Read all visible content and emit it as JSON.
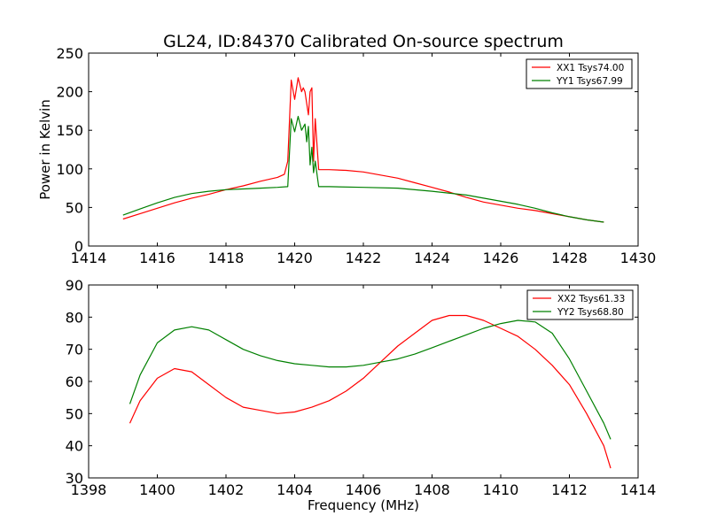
{
  "figure": {
    "title": "GL24, ID:84370 Calibrated On-source spectrum",
    "xlabel": "Frequency (MHz)",
    "ylabel": "Power in Kelvin"
  },
  "colors": {
    "red": "#ff0000",
    "green": "#008000",
    "axis": "#000000"
  },
  "chart_data": [
    {
      "type": "line",
      "title": "GL24, ID:84370 Calibrated On-source spectrum",
      "xlabel": "",
      "ylabel": "Power in Kelvin",
      "xlim": [
        1414,
        1430
      ],
      "ylim": [
        0,
        250
      ],
      "xticks": [
        "1414",
        "1416",
        "1418",
        "1420",
        "1422",
        "1424",
        "1426",
        "1428",
        "1430"
      ],
      "yticks": [
        "0",
        "50",
        "100",
        "150",
        "200",
        "250"
      ],
      "grid": false,
      "legend": "top-right",
      "series": [
        {
          "name": "XX1 Tsys74.00",
          "color": "#ff0000",
          "x": [
            1415.0,
            1415.5,
            1416.0,
            1416.5,
            1417.0,
            1417.5,
            1418.0,
            1418.5,
            1419.0,
            1419.5,
            1419.7,
            1419.8,
            1419.9,
            1420.0,
            1420.1,
            1420.2,
            1420.25,
            1420.3,
            1420.4,
            1420.45,
            1420.5,
            1420.55,
            1420.6,
            1420.7,
            1421.0,
            1421.5,
            1422.0,
            1422.5,
            1423.0,
            1423.5,
            1424.0,
            1424.5,
            1425.0,
            1425.5,
            1426.0,
            1426.5,
            1427.0,
            1427.5,
            1428.0,
            1428.5,
            1429.0
          ],
          "values": [
            35,
            42,
            49,
            56,
            62,
            67,
            73,
            78,
            84,
            89,
            93,
            110,
            215,
            190,
            218,
            200,
            205,
            200,
            170,
            200,
            205,
            110,
            165,
            99,
            99,
            98,
            96,
            92,
            88,
            82,
            76,
            70,
            63,
            57,
            53,
            49,
            46,
            42,
            38,
            34,
            31
          ]
        },
        {
          "name": "YY1 Tsys67.99",
          "color": "#008000",
          "x": [
            1415.0,
            1415.5,
            1416.0,
            1416.5,
            1417.0,
            1417.5,
            1418.0,
            1418.5,
            1419.0,
            1419.5,
            1419.8,
            1419.9,
            1420.0,
            1420.1,
            1420.2,
            1420.3,
            1420.35,
            1420.4,
            1420.45,
            1420.5,
            1420.55,
            1420.6,
            1420.7,
            1421.0,
            1422.0,
            1423.0,
            1424.0,
            1425.0,
            1425.5,
            1426.0,
            1426.5,
            1427.0,
            1427.5,
            1428.0,
            1428.5,
            1429.0
          ],
          "values": [
            40,
            48,
            56,
            63,
            68,
            71,
            73,
            74,
            75,
            76,
            77,
            165,
            148,
            168,
            150,
            158,
            135,
            155,
            105,
            128,
            95,
            110,
            77,
            77,
            76,
            75,
            71,
            66,
            62,
            58,
            54,
            49,
            43,
            38,
            34,
            31
          ]
        }
      ]
    },
    {
      "type": "line",
      "title": "",
      "xlabel": "Frequency (MHz)",
      "ylabel": "",
      "xlim": [
        1398,
        1414
      ],
      "ylim": [
        30,
        90
      ],
      "xticks": [
        "1398",
        "1400",
        "1402",
        "1404",
        "1406",
        "1408",
        "1410",
        "1412",
        "1414"
      ],
      "yticks": [
        "30",
        "40",
        "50",
        "60",
        "70",
        "80",
        "90"
      ],
      "grid": false,
      "legend": "top-right",
      "series": [
        {
          "name": "XX2 Tsys61.33",
          "color": "#ff0000",
          "x": [
            1399.2,
            1399.5,
            1400.0,
            1400.5,
            1401.0,
            1401.5,
            1402.0,
            1402.5,
            1403.0,
            1403.5,
            1404.0,
            1404.5,
            1405.0,
            1405.5,
            1406.0,
            1406.5,
            1407.0,
            1407.5,
            1408.0,
            1408.5,
            1409.0,
            1409.5,
            1410.0,
            1410.5,
            1411.0,
            1411.5,
            1412.0,
            1412.5,
            1413.0,
            1413.2
          ],
          "values": [
            47,
            54,
            61,
            64,
            63,
            59,
            55,
            52,
            51,
            50,
            50.5,
            52,
            54,
            57,
            61,
            66,
            71,
            75,
            79,
            80.5,
            80.5,
            79,
            76.5,
            74,
            70,
            65,
            59,
            50,
            40,
            33
          ]
        },
        {
          "name": "YY2 Tsys68.80",
          "color": "#008000",
          "x": [
            1399.2,
            1399.5,
            1400.0,
            1400.5,
            1401.0,
            1401.5,
            1402.0,
            1402.5,
            1403.0,
            1403.5,
            1404.0,
            1404.5,
            1405.0,
            1405.5,
            1406.0,
            1406.5,
            1407.0,
            1407.5,
            1408.0,
            1408.5,
            1409.0,
            1409.5,
            1410.0,
            1410.5,
            1411.0,
            1411.5,
            1412.0,
            1412.5,
            1413.0,
            1413.2
          ],
          "values": [
            53,
            62,
            72,
            76,
            77,
            76,
            73,
            70,
            68,
            66.5,
            65.5,
            65,
            64.5,
            64.5,
            65,
            66,
            67,
            68.5,
            70.5,
            72.5,
            74.5,
            76.5,
            78,
            79,
            78.5,
            75,
            67,
            57,
            47,
            42
          ]
        }
      ]
    }
  ]
}
